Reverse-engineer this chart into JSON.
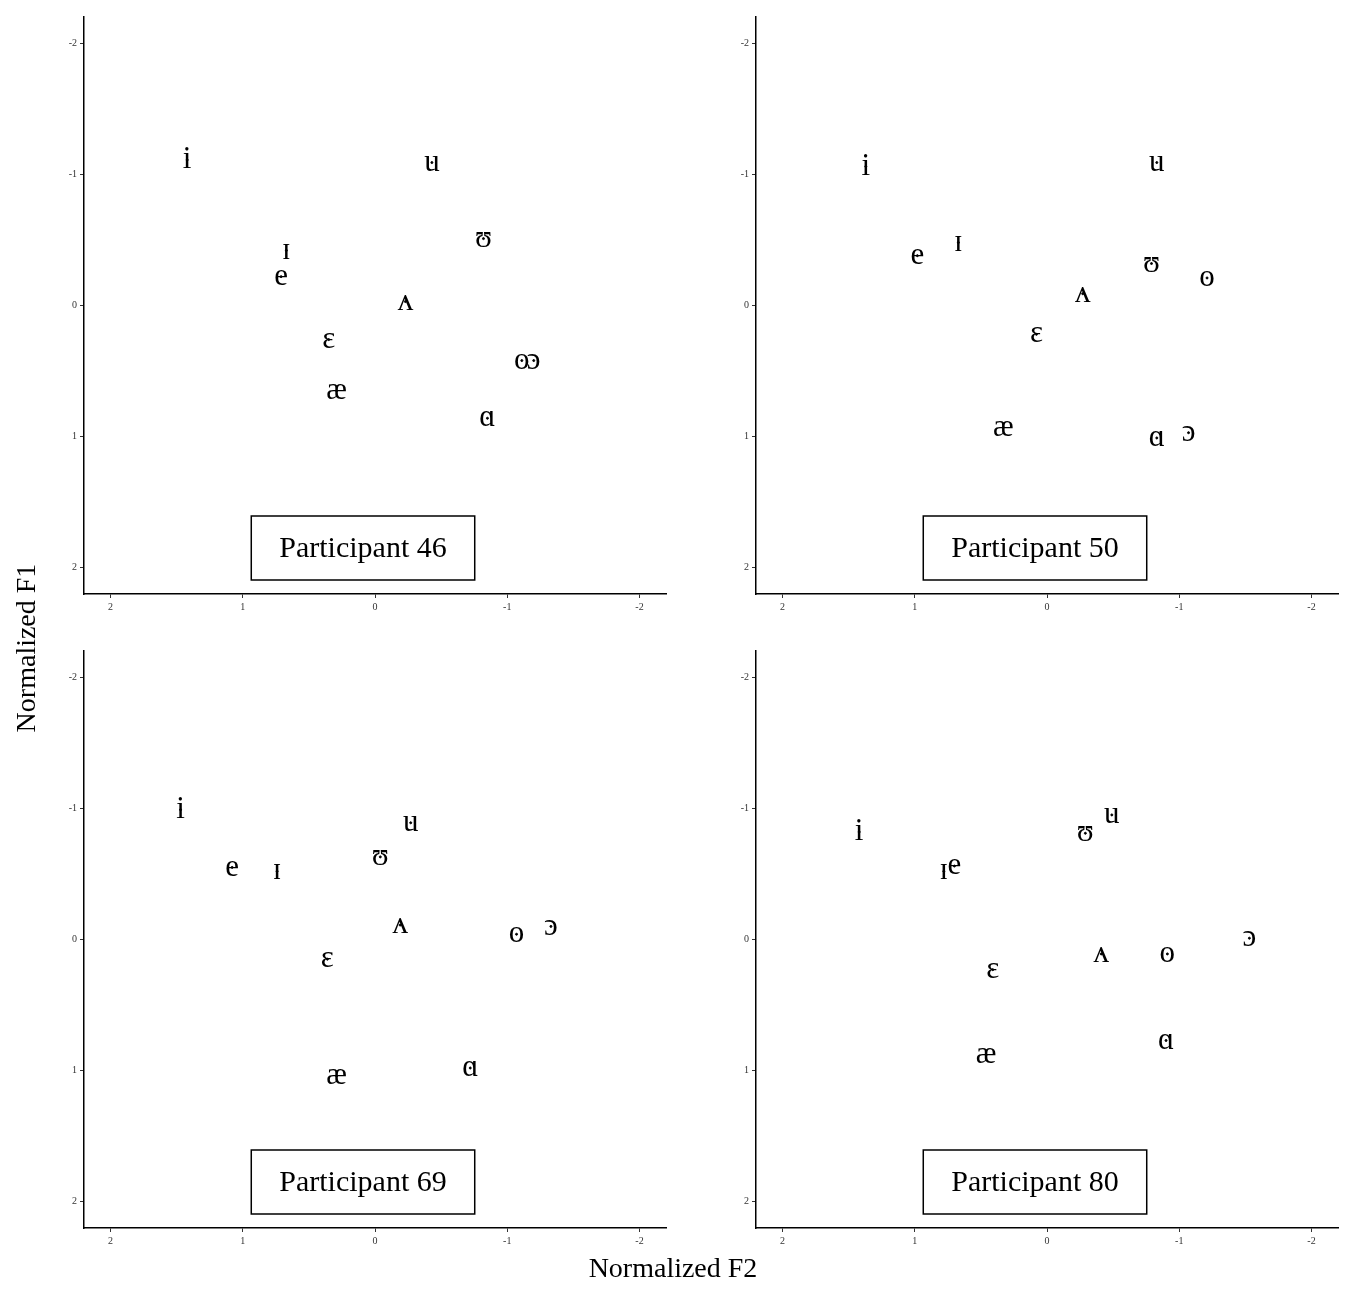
{
  "chart_data": [
    {
      "type": "scatter",
      "title": "Participant 46",
      "ylabel": "Normalized F1",
      "xlim": [
        2.2,
        -2.2
      ],
      "ylim": [
        2.2,
        -2.2
      ],
      "xticks": [
        2,
        1,
        0,
        -1,
        -2
      ],
      "yticks": [
        2,
        1,
        0,
        -1,
        -2
      ],
      "grid": false,
      "legend": false,
      "series": [
        {
          "color": "#000000",
          "x": [
            1.42,
            -0.43,
            0.67,
            -0.82,
            0.71,
            -0.23,
            0.35,
            -1.11,
            -1.2,
            0.29,
            -0.85
          ],
          "values": [
            -1.11,
            -1.09,
            -0.42,
            -0.51,
            -0.22,
            -0.03,
            0.26,
            0.42,
            0.42,
            0.65,
            0.86
          ],
          "value_labels": [
            "i",
            "u",
            "ɪ",
            "ʊ",
            "e",
            "ʌ",
            "ɛ",
            "o",
            "ɔ",
            "æ",
            "ɑ"
          ]
        }
      ]
    },
    {
      "type": "scatter",
      "title": "Participant 50",
      "xlim": [
        2.2,
        -2.2
      ],
      "ylim": [
        2.2,
        -2.2
      ],
      "xticks": [
        2,
        1,
        0,
        -1,
        -2
      ],
      "yticks": [
        2,
        1,
        0,
        -1,
        -2
      ],
      "grid": false,
      "legend": false,
      "series": [
        {
          "color": "#000000",
          "x": [
            1.37,
            -0.83,
            0.98,
            0.67,
            -0.79,
            -1.21,
            -0.27,
            0.08,
            0.33,
            -0.83,
            -1.07
          ],
          "values": [
            -1.06,
            -1.09,
            -0.38,
            -0.48,
            -0.32,
            -0.21,
            -0.09,
            0.22,
            0.93,
            1.01,
            0.97
          ],
          "value_labels": [
            "i",
            "u",
            "e",
            "ɪ",
            "ʊ",
            "o",
            "ʌ",
            "ɛ",
            "æ",
            "ɑ",
            "ɔ"
          ]
        }
      ]
    },
    {
      "type": "scatter",
      "title": "Participant 69",
      "xlabel": "Normalized F2",
      "xlim": [
        2.2,
        -2.2
      ],
      "ylim": [
        2.2,
        -2.2
      ],
      "xticks": [
        2,
        1,
        0,
        -1,
        -2
      ],
      "yticks": [
        2,
        1,
        0,
        -1,
        -2
      ],
      "grid": false,
      "legend": false,
      "series": [
        {
          "color": "#000000",
          "x": [
            1.47,
            -0.27,
            -0.04,
            1.08,
            0.74,
            -0.19,
            -1.07,
            -1.33,
            0.36,
            -0.72,
            0.29
          ],
          "values": [
            -0.99,
            -0.89,
            -0.63,
            -0.55,
            -0.52,
            -0.11,
            -0.04,
            -0.1,
            0.15,
            0.98,
            1.04
          ],
          "value_labels": [
            "i",
            "u",
            "ʊ",
            "e",
            "ɪ",
            "ʌ",
            "o",
            "ɔ",
            "ɛ",
            "ɑ",
            "æ"
          ]
        }
      ]
    },
    {
      "type": "scatter",
      "title": "Participant 80",
      "xlim": [
        2.2,
        -2.2
      ],
      "ylim": [
        2.2,
        -2.2
      ],
      "xticks": [
        2,
        1,
        0,
        -1,
        -2
      ],
      "yticks": [
        2,
        1,
        0,
        -1,
        -2
      ],
      "grid": false,
      "legend": false,
      "series": [
        {
          "color": "#000000",
          "x": [
            1.42,
            -0.49,
            -0.29,
            0.78,
            0.7,
            -0.41,
            -0.91,
            -1.53,
            0.41,
            0.46,
            -0.9
          ],
          "values": [
            -0.82,
            -0.95,
            -0.81,
            -0.52,
            -0.56,
            0.11,
            0.11,
            -0.01,
            0.23,
            0.88,
            0.77
          ],
          "value_labels": [
            "i",
            "u",
            "ʊ",
            "ɪ",
            "e",
            "ʌ",
            "o",
            "ɔ",
            "ɛ",
            "æ",
            "ɑ"
          ]
        }
      ]
    }
  ]
}
